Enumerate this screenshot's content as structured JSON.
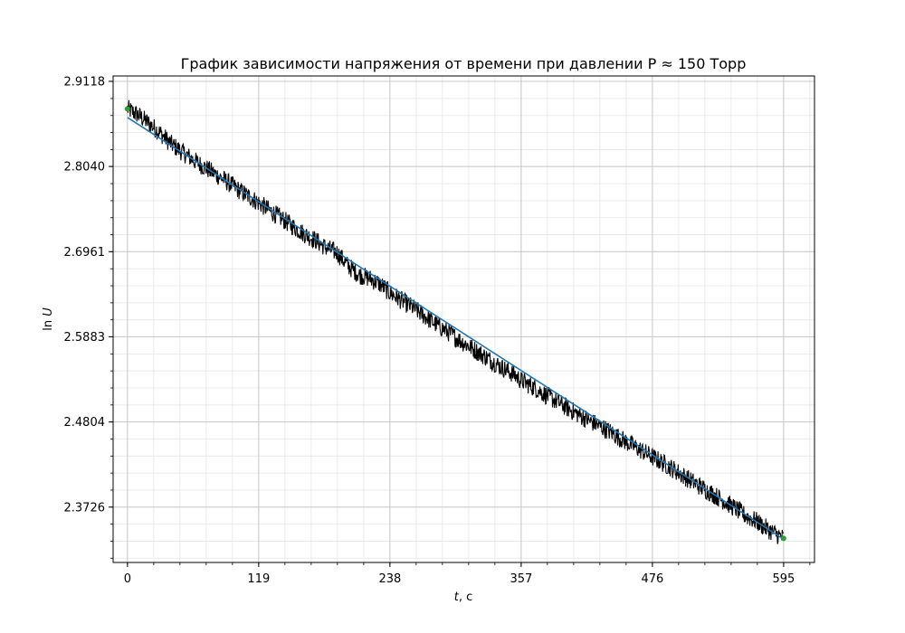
{
  "chart_data": {
    "type": "line",
    "title": "График зависимости напряжения от времени при давлении P ≈ 150 Торр",
    "xlabel_var": "t",
    "xlabel_unit": ", с",
    "ylabel_prefix": "ln ",
    "ylabel_var": "U",
    "xlim": [
      -13,
      623
    ],
    "ylim": [
      2.3025,
      2.9186
    ],
    "x_ticks": [
      0,
      119,
      238,
      357,
      476,
      595
    ],
    "y_ticks": [
      2.3726,
      2.4804,
      2.5883,
      2.6961,
      2.804,
      2.9118
    ],
    "y_tick_labels": [
      "2.3726",
      "2.4804",
      "2.5883",
      "2.6961",
      "2.8040",
      "2.9118"
    ],
    "grid": true,
    "minor_grid": true,
    "series": [
      {
        "kind": "measured",
        "color": "#000000",
        "noise_band": 0.012,
        "x": [
          0,
          10,
          20,
          30,
          40,
          50,
          60,
          70,
          80,
          90,
          100,
          110,
          119,
          130,
          140,
          150,
          160,
          170,
          180,
          190,
          200,
          210,
          220,
          230,
          238,
          250,
          260,
          270,
          280,
          290,
          300,
          310,
          320,
          330,
          340,
          350,
          357,
          370,
          380,
          390,
          400,
          410,
          420,
          430,
          440,
          450,
          460,
          470,
          476,
          490,
          500,
          510,
          520,
          530,
          540,
          550,
          560,
          570,
          580,
          590,
          595
        ],
        "y": [
          2.877,
          2.869,
          2.858,
          2.846,
          2.832,
          2.822,
          2.812,
          2.803,
          2.794,
          2.785,
          2.775,
          2.766,
          2.758,
          2.747,
          2.738,
          2.728,
          2.719,
          2.711,
          2.701,
          2.695,
          2.678,
          2.667,
          2.662,
          2.654,
          2.644,
          2.633,
          2.624,
          2.614,
          2.604,
          2.595,
          2.585,
          2.576,
          2.567,
          2.558,
          2.549,
          2.541,
          2.533,
          2.523,
          2.514,
          2.506,
          2.497,
          2.489,
          2.481,
          2.474,
          2.466,
          2.457,
          2.449,
          2.441,
          2.436,
          2.425,
          2.416,
          2.407,
          2.398,
          2.39,
          2.381,
          2.372,
          2.362,
          2.355,
          2.345,
          2.337,
          2.333
        ]
      },
      {
        "kind": "fit",
        "color": "#1f77b4",
        "x": [
          0,
          595
        ],
        "y": [
          2.866,
          2.332
        ]
      }
    ],
    "endpoints": {
      "color": "#2ca02c",
      "points": [
        {
          "x": 0,
          "y": 2.877
        },
        {
          "x": 595,
          "y": 2.333
        }
      ]
    }
  }
}
